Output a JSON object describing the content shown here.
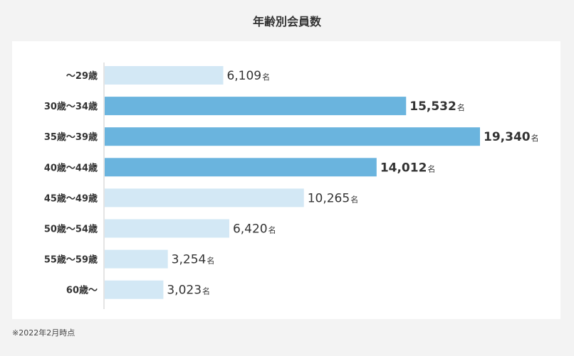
{
  "chart_data": {
    "type": "bar",
    "orientation": "horizontal",
    "title": "年齢別会員数",
    "unit": "名",
    "categories": [
      "〜29歳",
      "30歳〜34歳",
      "35歳〜39歳",
      "40歳〜44歳",
      "45歳〜49歳",
      "50歳〜54歳",
      "55歳〜59歳",
      "60歳〜"
    ],
    "values": [
      6109,
      15532,
      19340,
      14012,
      10265,
      6420,
      3254,
      3023
    ],
    "value_labels": [
      "6,109",
      "15,532",
      "19,340",
      "14,012",
      "10,265",
      "6,420",
      "3,254",
      "3,023"
    ],
    "highlighted": [
      false,
      true,
      true,
      true,
      false,
      false,
      false,
      false
    ],
    "xlim": [
      0,
      19340
    ],
    "grid": false,
    "colors": {
      "normal": "#d3e8f5",
      "highlight": "#6ab4de",
      "axis": "#c8c8c8"
    }
  },
  "footnote": "※2022年2月時点"
}
